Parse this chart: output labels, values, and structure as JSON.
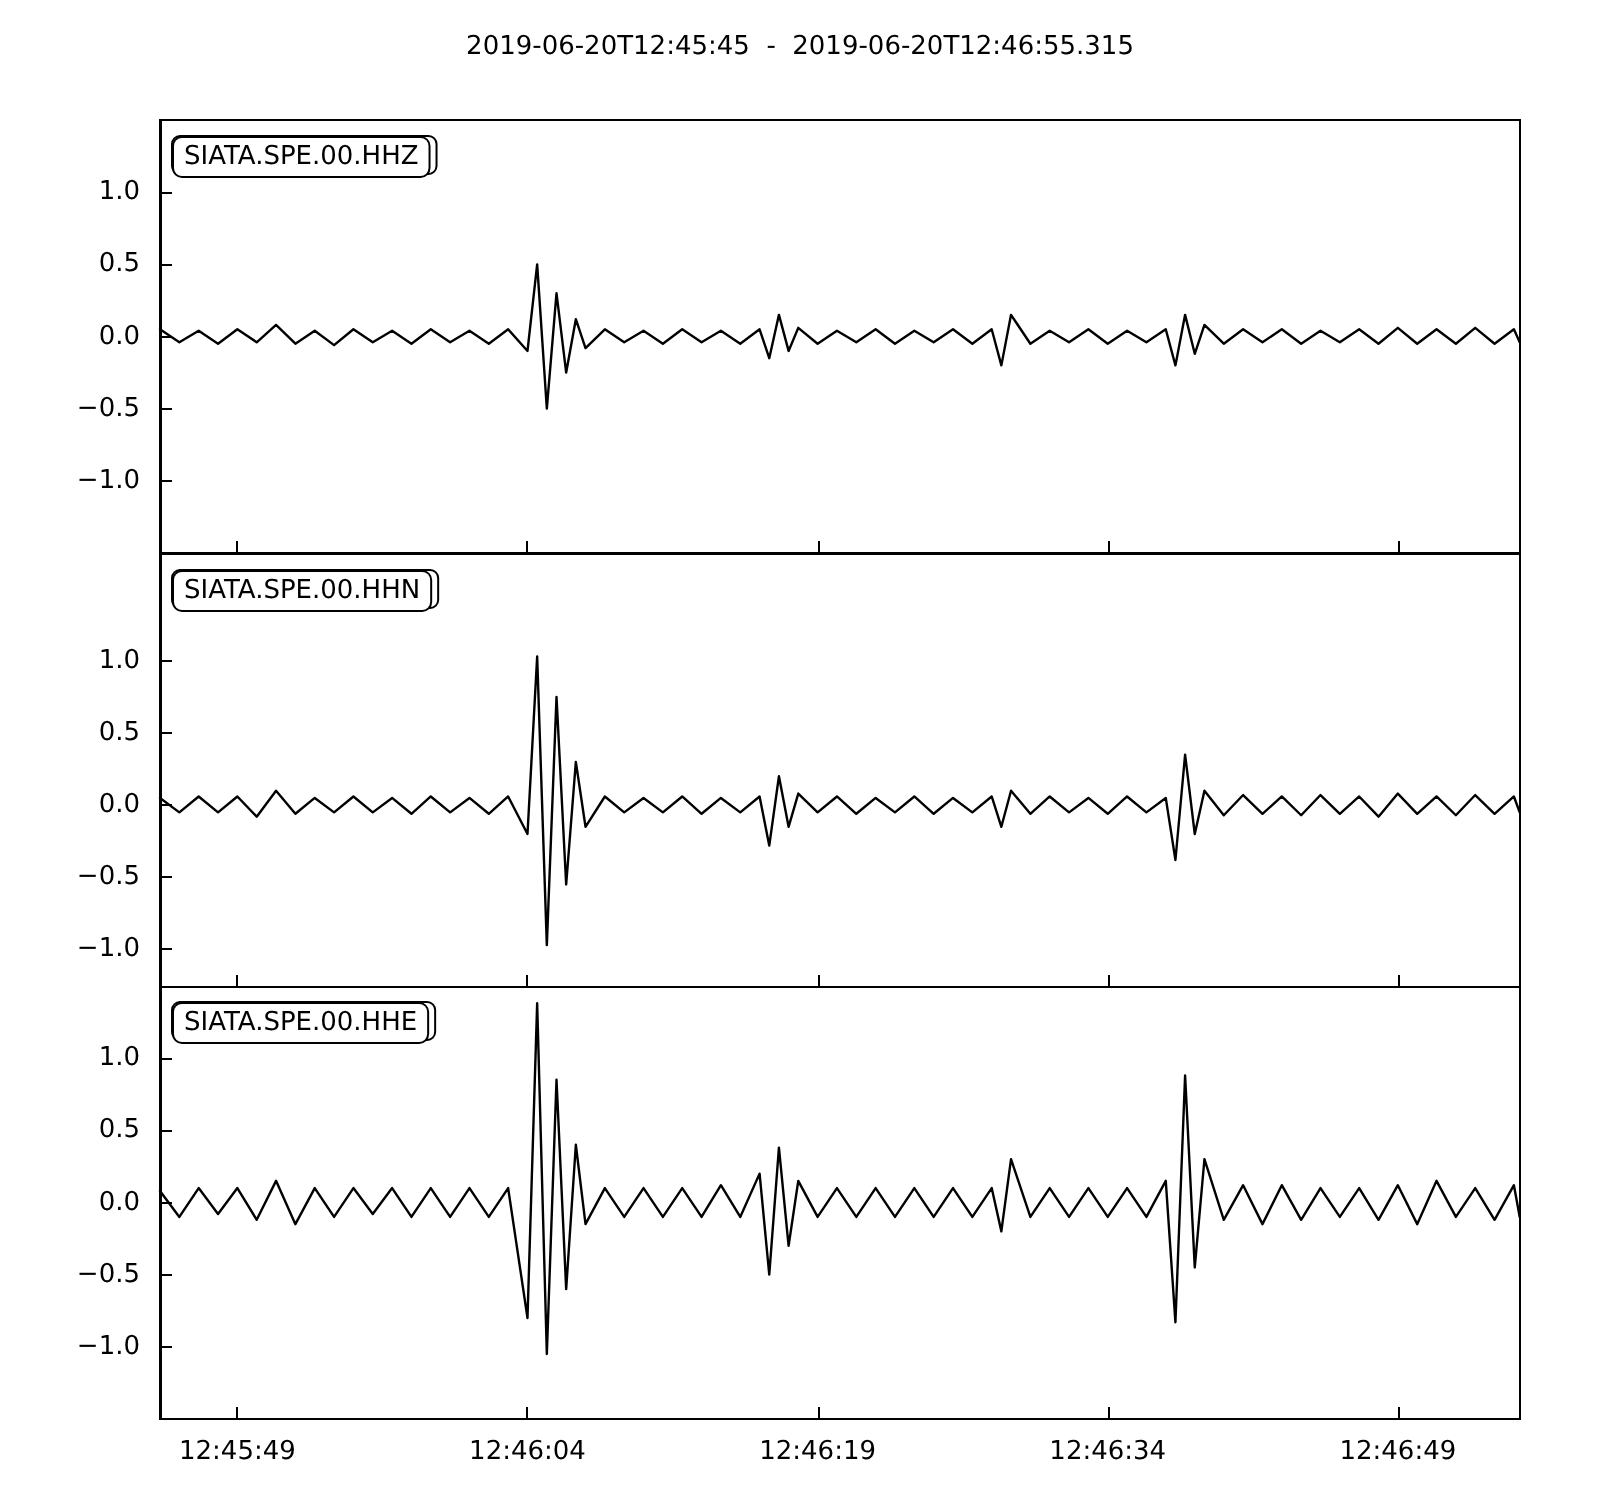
{
  "chart_data": [
    {
      "type": "line",
      "title": "2019-06-20T12:45:45  -  2019-06-20T12:46:55.315",
      "legend": "top left",
      "tick_labels": "y",
      "grid": false,
      "marker": "none",
      "line_style": "solid",
      "xlim": [
        "2019-06-20T12:45:45",
        "2019-06-20T12:46:55.315"
      ],
      "xticks": [
        {
          "value": "2019-06-20T12:45:49",
          "label": null
        },
        {
          "value": "2019-06-20T12:46:04",
          "label": null
        },
        {
          "value": "2019-06-20T12:46:19",
          "label": null
        },
        {
          "value": "2019-06-20T12:46:34",
          "label": null
        },
        {
          "value": "2019-06-20T12:46:49",
          "label": null
        }
      ],
      "ylim": [
        -1.5,
        1.5
      ],
      "yticks": [
        {
          "value": -1,
          "label": "−1.0"
        },
        {
          "value": -0.5,
          "label": "−0.5"
        },
        {
          "value": 0,
          "label": "0.0"
        },
        {
          "value": 0.5,
          "label": "0.5"
        },
        {
          "value": 1,
          "label": "1.0"
        }
      ],
      "x": [
        "2019-06-20T12:45:45",
        "2019-06-20T12:45:46",
        "2019-06-20T12:45:47",
        "2019-06-20T12:45:48",
        "2019-06-20T12:45:49",
        "2019-06-20T12:45:50",
        "2019-06-20T12:45:51",
        "2019-06-20T12:45:52",
        "2019-06-20T12:45:53",
        "2019-06-20T12:45:54",
        "2019-06-20T12:45:55",
        "2019-06-20T12:45:56",
        "2019-06-20T12:45:57",
        "2019-06-20T12:45:58",
        "2019-06-20T12:45:59",
        "2019-06-20T12:46:00",
        "2019-06-20T12:46:01",
        "2019-06-20T12:46:02",
        "2019-06-20T12:46:03",
        "2019-06-20T12:46:04",
        "2019-06-20T12:46:04.5",
        "2019-06-20T12:46:05",
        "2019-06-20T12:46:05.5",
        "2019-06-20T12:46:06",
        "2019-06-20T12:46:06.5",
        "2019-06-20T12:46:07",
        "2019-06-20T12:46:08",
        "2019-06-20T12:46:09",
        "2019-06-20T12:46:10",
        "2019-06-20T12:46:11",
        "2019-06-20T12:46:12",
        "2019-06-20T12:46:13",
        "2019-06-20T12:46:14",
        "2019-06-20T12:46:15",
        "2019-06-20T12:46:16",
        "2019-06-20T12:46:16.5",
        "2019-06-20T12:46:17",
        "2019-06-20T12:46:17.5",
        "2019-06-20T12:46:18",
        "2019-06-20T12:46:19",
        "2019-06-20T12:46:20",
        "2019-06-20T12:46:21",
        "2019-06-20T12:46:22",
        "2019-06-20T12:46:23",
        "2019-06-20T12:46:24",
        "2019-06-20T12:46:25",
        "2019-06-20T12:46:26",
        "2019-06-20T12:46:27",
        "2019-06-20T12:46:28",
        "2019-06-20T12:46:28.5",
        "2019-06-20T12:46:29",
        "2019-06-20T12:46:30",
        "2019-06-20T12:46:31",
        "2019-06-20T12:46:32",
        "2019-06-20T12:46:33",
        "2019-06-20T12:46:34",
        "2019-06-20T12:46:35",
        "2019-06-20T12:46:36",
        "2019-06-20T12:46:37",
        "2019-06-20T12:46:37.5",
        "2019-06-20T12:46:38",
        "2019-06-20T12:46:38.5",
        "2019-06-20T12:46:39",
        "2019-06-20T12:46:40",
        "2019-06-20T12:46:41",
        "2019-06-20T12:46:42",
        "2019-06-20T12:46:43",
        "2019-06-20T12:46:44",
        "2019-06-20T12:46:45",
        "2019-06-20T12:46:46",
        "2019-06-20T12:46:47",
        "2019-06-20T12:46:48",
        "2019-06-20T12:46:49",
        "2019-06-20T12:46:50",
        "2019-06-20T12:46:51",
        "2019-06-20T12:46:52",
        "2019-06-20T12:46:53",
        "2019-06-20T12:46:54",
        "2019-06-20T12:46:55",
        "2019-06-20T12:46:55.3"
      ],
      "series": [
        {
          "name": "SIATA.SPE.00.HHZ",
          "color": "#000000",
          "values": [
            0.05,
            -0.04,
            0.04,
            -0.05,
            0.05,
            -0.04,
            0.08,
            -0.05,
            0.04,
            -0.06,
            0.05,
            -0.04,
            0.04,
            -0.05,
            0.05,
            -0.04,
            0.04,
            -0.05,
            0.05,
            -0.1,
            0.5,
            -0.5,
            0.3,
            -0.25,
            0.12,
            -0.08,
            0.05,
            -0.04,
            0.04,
            -0.05,
            0.05,
            -0.04,
            0.04,
            -0.05,
            0.05,
            -0.15,
            0.15,
            -0.1,
            0.06,
            -0.05,
            0.04,
            -0.04,
            0.05,
            -0.05,
            0.04,
            -0.04,
            0.05,
            -0.05,
            0.05,
            -0.2,
            0.15,
            -0.05,
            0.04,
            -0.04,
            0.05,
            -0.05,
            0.04,
            -0.04,
            0.05,
            -0.2,
            0.15,
            -0.12,
            0.08,
            -0.05,
            0.05,
            -0.04,
            0.05,
            -0.05,
            0.04,
            -0.04,
            0.05,
            -0.05,
            0.06,
            -0.05,
            0.05,
            -0.05,
            0.06,
            -0.05,
            0.05,
            -0.04
          ]
        }
      ]
    },
    {
      "type": "line",
      "legend": "top left",
      "tick_labels": "y",
      "grid": false,
      "marker": "none",
      "line_style": "solid",
      "xlim": [
        "2019-06-20T12:45:45",
        "2019-06-20T12:46:55.315"
      ],
      "xticks": [
        {
          "value": "2019-06-20T12:45:49",
          "label": null
        },
        {
          "value": "2019-06-20T12:46:04",
          "label": null
        },
        {
          "value": "2019-06-20T12:46:19",
          "label": null
        },
        {
          "value": "2019-06-20T12:46:34",
          "label": null
        },
        {
          "value": "2019-06-20T12:46:49",
          "label": null
        }
      ],
      "ylim": [
        -1.26,
        1.74
      ],
      "yticks": [
        {
          "value": -1,
          "label": "−1.0"
        },
        {
          "value": -0.5,
          "label": "−0.5"
        },
        {
          "value": 0,
          "label": "0.0"
        },
        {
          "value": 0.5,
          "label": "0.5"
        },
        {
          "value": 1,
          "label": "1.0"
        }
      ],
      "x": [
        "2019-06-20T12:45:45",
        "2019-06-20T12:45:46",
        "2019-06-20T12:45:47",
        "2019-06-20T12:45:48",
        "2019-06-20T12:45:49",
        "2019-06-20T12:45:50",
        "2019-06-20T12:45:51",
        "2019-06-20T12:45:52",
        "2019-06-20T12:45:53",
        "2019-06-20T12:45:54",
        "2019-06-20T12:45:55",
        "2019-06-20T12:45:56",
        "2019-06-20T12:45:57",
        "2019-06-20T12:45:58",
        "2019-06-20T12:45:59",
        "2019-06-20T12:46:00",
        "2019-06-20T12:46:01",
        "2019-06-20T12:46:02",
        "2019-06-20T12:46:03",
        "2019-06-20T12:46:04",
        "2019-06-20T12:46:04.5",
        "2019-06-20T12:46:05",
        "2019-06-20T12:46:05.5",
        "2019-06-20T12:46:06",
        "2019-06-20T12:46:06.5",
        "2019-06-20T12:46:07",
        "2019-06-20T12:46:08",
        "2019-06-20T12:46:09",
        "2019-06-20T12:46:10",
        "2019-06-20T12:46:11",
        "2019-06-20T12:46:12",
        "2019-06-20T12:46:13",
        "2019-06-20T12:46:14",
        "2019-06-20T12:46:15",
        "2019-06-20T12:46:16",
        "2019-06-20T12:46:16.5",
        "2019-06-20T12:46:17",
        "2019-06-20T12:46:17.5",
        "2019-06-20T12:46:18",
        "2019-06-20T12:46:19",
        "2019-06-20T12:46:20",
        "2019-06-20T12:46:21",
        "2019-06-20T12:46:22",
        "2019-06-20T12:46:23",
        "2019-06-20T12:46:24",
        "2019-06-20T12:46:25",
        "2019-06-20T12:46:26",
        "2019-06-20T12:46:27",
        "2019-06-20T12:46:28",
        "2019-06-20T12:46:28.5",
        "2019-06-20T12:46:29",
        "2019-06-20T12:46:30",
        "2019-06-20T12:46:31",
        "2019-06-20T12:46:32",
        "2019-06-20T12:46:33",
        "2019-06-20T12:46:34",
        "2019-06-20T12:46:35",
        "2019-06-20T12:46:36",
        "2019-06-20T12:46:37",
        "2019-06-20T12:46:37.5",
        "2019-06-20T12:46:38",
        "2019-06-20T12:46:38.5",
        "2019-06-20T12:46:39",
        "2019-06-20T12:46:40",
        "2019-06-20T12:46:41",
        "2019-06-20T12:46:42",
        "2019-06-20T12:46:43",
        "2019-06-20T12:46:44",
        "2019-06-20T12:46:45",
        "2019-06-20T12:46:46",
        "2019-06-20T12:46:47",
        "2019-06-20T12:46:48",
        "2019-06-20T12:46:49",
        "2019-06-20T12:46:50",
        "2019-06-20T12:46:51",
        "2019-06-20T12:46:52",
        "2019-06-20T12:46:53",
        "2019-06-20T12:46:54",
        "2019-06-20T12:46:55",
        "2019-06-20T12:46:55.3"
      ],
      "series": [
        {
          "name": "SIATA.SPE.00.HHN",
          "color": "#000000",
          "values": [
            0.05,
            -0.05,
            0.06,
            -0.05,
            0.06,
            -0.08,
            0.1,
            -0.06,
            0.05,
            -0.05,
            0.06,
            -0.05,
            0.05,
            -0.06,
            0.06,
            -0.05,
            0.05,
            -0.06,
            0.06,
            -0.2,
            1.03,
            -0.97,
            0.75,
            -0.55,
            0.3,
            -0.15,
            0.06,
            -0.05,
            0.05,
            -0.05,
            0.06,
            -0.06,
            0.05,
            -0.05,
            0.06,
            -0.28,
            0.2,
            -0.15,
            0.08,
            -0.05,
            0.06,
            -0.06,
            0.05,
            -0.05,
            0.06,
            -0.06,
            0.05,
            -0.05,
            0.06,
            -0.15,
            0.1,
            -0.06,
            0.06,
            -0.05,
            0.05,
            -0.06,
            0.06,
            -0.05,
            0.05,
            -0.38,
            0.35,
            -0.2,
            0.1,
            -0.07,
            0.07,
            -0.06,
            0.06,
            -0.07,
            0.07,
            -0.06,
            0.06,
            -0.08,
            0.08,
            -0.06,
            0.06,
            -0.07,
            0.07,
            -0.06,
            0.06,
            -0.05
          ]
        }
      ]
    },
    {
      "type": "line",
      "legend": "top left",
      "grid": false,
      "marker": "none",
      "line_style": "solid",
      "xlim": [
        "2019-06-20T12:45:45",
        "2019-06-20T12:46:55.315"
      ],
      "xticks": [
        {
          "value": "2019-06-20T12:45:49",
          "label": "12:45:49"
        },
        {
          "value": "2019-06-20T12:46:04",
          "label": "12:46:04"
        },
        {
          "value": "2019-06-20T12:46:19",
          "label": "12:46:19"
        },
        {
          "value": "2019-06-20T12:46:34",
          "label": "12:46:34"
        },
        {
          "value": "2019-06-20T12:46:49",
          "label": "12:46:49"
        }
      ],
      "ylim": [
        -1.5,
        1.5
      ],
      "yticks": [
        {
          "value": -1,
          "label": "−1.0"
        },
        {
          "value": -0.5,
          "label": "−0.5"
        },
        {
          "value": 0,
          "label": "0.0"
        },
        {
          "value": 0.5,
          "label": "0.5"
        },
        {
          "value": 1,
          "label": "1.0"
        }
      ],
      "x": [
        "2019-06-20T12:45:45",
        "2019-06-20T12:45:46",
        "2019-06-20T12:45:47",
        "2019-06-20T12:45:48",
        "2019-06-20T12:45:49",
        "2019-06-20T12:45:50",
        "2019-06-20T12:45:51",
        "2019-06-20T12:45:52",
        "2019-06-20T12:45:53",
        "2019-06-20T12:45:54",
        "2019-06-20T12:45:55",
        "2019-06-20T12:45:56",
        "2019-06-20T12:45:57",
        "2019-06-20T12:45:58",
        "2019-06-20T12:45:59",
        "2019-06-20T12:46:00",
        "2019-06-20T12:46:01",
        "2019-06-20T12:46:02",
        "2019-06-20T12:46:03",
        "2019-06-20T12:46:04",
        "2019-06-20T12:46:04.5",
        "2019-06-20T12:46:05",
        "2019-06-20T12:46:05.5",
        "2019-06-20T12:46:06",
        "2019-06-20T12:46:06.5",
        "2019-06-20T12:46:07",
        "2019-06-20T12:46:08",
        "2019-06-20T12:46:09",
        "2019-06-20T12:46:10",
        "2019-06-20T12:46:11",
        "2019-06-20T12:46:12",
        "2019-06-20T12:46:13",
        "2019-06-20T12:46:14",
        "2019-06-20T12:46:15",
        "2019-06-20T12:46:16",
        "2019-06-20T12:46:16.5",
        "2019-06-20T12:46:17",
        "2019-06-20T12:46:17.5",
        "2019-06-20T12:46:18",
        "2019-06-20T12:46:19",
        "2019-06-20T12:46:20",
        "2019-06-20T12:46:21",
        "2019-06-20T12:46:22",
        "2019-06-20T12:46:23",
        "2019-06-20T12:46:24",
        "2019-06-20T12:46:25",
        "2019-06-20T12:46:26",
        "2019-06-20T12:46:27",
        "2019-06-20T12:46:28",
        "2019-06-20T12:46:28.5",
        "2019-06-20T12:46:29",
        "2019-06-20T12:46:30",
        "2019-06-20T12:46:31",
        "2019-06-20T12:46:32",
        "2019-06-20T12:46:33",
        "2019-06-20T12:46:34",
        "2019-06-20T12:46:35",
        "2019-06-20T12:46:36",
        "2019-06-20T12:46:37",
        "2019-06-20T12:46:37.5",
        "2019-06-20T12:46:38",
        "2019-06-20T12:46:38.5",
        "2019-06-20T12:46:39",
        "2019-06-20T12:46:40",
        "2019-06-20T12:46:41",
        "2019-06-20T12:46:42",
        "2019-06-20T12:46:43",
        "2019-06-20T12:46:44",
        "2019-06-20T12:46:45",
        "2019-06-20T12:46:46",
        "2019-06-20T12:46:47",
        "2019-06-20T12:46:48",
        "2019-06-20T12:46:49",
        "2019-06-20T12:46:50",
        "2019-06-20T12:46:51",
        "2019-06-20T12:46:52",
        "2019-06-20T12:46:53",
        "2019-06-20T12:46:54",
        "2019-06-20T12:46:55",
        "2019-06-20T12:46:55.3"
      ],
      "series": [
        {
          "name": "SIATA.SPE.00.HHE",
          "color": "#000000",
          "values": [
            0.08,
            -0.1,
            0.1,
            -0.08,
            0.1,
            -0.12,
            0.15,
            -0.15,
            0.1,
            -0.1,
            0.1,
            -0.08,
            0.1,
            -0.1,
            0.1,
            -0.1,
            0.1,
            -0.1,
            0.1,
            -0.8,
            1.38,
            -1.05,
            0.85,
            -0.6,
            0.4,
            -0.15,
            0.1,
            -0.1,
            0.1,
            -0.1,
            0.1,
            -0.1,
            0.12,
            -0.1,
            0.2,
            -0.5,
            0.38,
            -0.3,
            0.15,
            -0.1,
            0.1,
            -0.1,
            0.1,
            -0.1,
            0.1,
            -0.1,
            0.1,
            -0.1,
            0.1,
            -0.2,
            0.3,
            -0.1,
            0.1,
            -0.1,
            0.1,
            -0.1,
            0.1,
            -0.1,
            0.15,
            -0.83,
            0.88,
            -0.45,
            0.3,
            -0.12,
            0.12,
            -0.15,
            0.12,
            -0.12,
            0.1,
            -0.1,
            0.1,
            -0.12,
            0.12,
            -0.15,
            0.15,
            -0.1,
            0.1,
            -0.12,
            0.12,
            -0.1
          ]
        }
      ]
    }
  ]
}
